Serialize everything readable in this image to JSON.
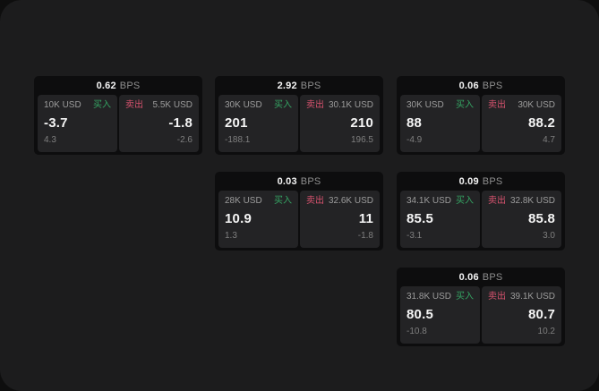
{
  "window": {
    "outer_bg": "#0e0e0e",
    "surface_bg": "#1c1c1d"
  },
  "colors": {
    "buy_green": "#35a463",
    "sell_red": "#d8536f",
    "card_bg": "#0d0d0e",
    "panel_bg": "#232325",
    "text_primary": "#f5f5f5",
    "text_muted": "#8f8f8f"
  },
  "labels": {
    "bps_unit": "BPS",
    "buy": "买入",
    "sell": "卖出"
  },
  "cards": [
    {
      "bps": "0.62",
      "col": 1,
      "row": 1,
      "buy": {
        "amount": "10K USD",
        "value": "-3.7",
        "sub": "4.3"
      },
      "sell": {
        "amount": "5.5K USD",
        "value": "-1.8",
        "sub": "-2.6"
      }
    },
    {
      "bps": "2.92",
      "col": 2,
      "row": 1,
      "buy": {
        "amount": "30K USD",
        "value": "201",
        "sub": "-188.1"
      },
      "sell": {
        "amount": "30.1K USD",
        "value": "210",
        "sub": "196.5"
      }
    },
    {
      "bps": "0.06",
      "col": 3,
      "row": 1,
      "buy": {
        "amount": "30K USD",
        "value": "88",
        "sub": "-4.9"
      },
      "sell": {
        "amount": "30K USD",
        "value": "88.2",
        "sub": "4.7"
      }
    },
    {
      "bps": "0.03",
      "col": 2,
      "row": 2,
      "buy": {
        "amount": "28K USD",
        "value": "10.9",
        "sub": "1.3"
      },
      "sell": {
        "amount": "32.6K USD",
        "value": "11",
        "sub": "-1.8"
      }
    },
    {
      "bps": "0.09",
      "col": 3,
      "row": 2,
      "buy": {
        "amount": "34.1K USD",
        "value": "85.5",
        "sub": "-3.1"
      },
      "sell": {
        "amount": "32.8K USD",
        "value": "85.8",
        "sub": "3.0"
      }
    },
    {
      "bps": "0.06",
      "col": 3,
      "row": 3,
      "buy": {
        "amount": "31.8K USD",
        "value": "80.5",
        "sub": "-10.8"
      },
      "sell": {
        "amount": "39.1K USD",
        "value": "80.7",
        "sub": "10.2"
      }
    }
  ]
}
